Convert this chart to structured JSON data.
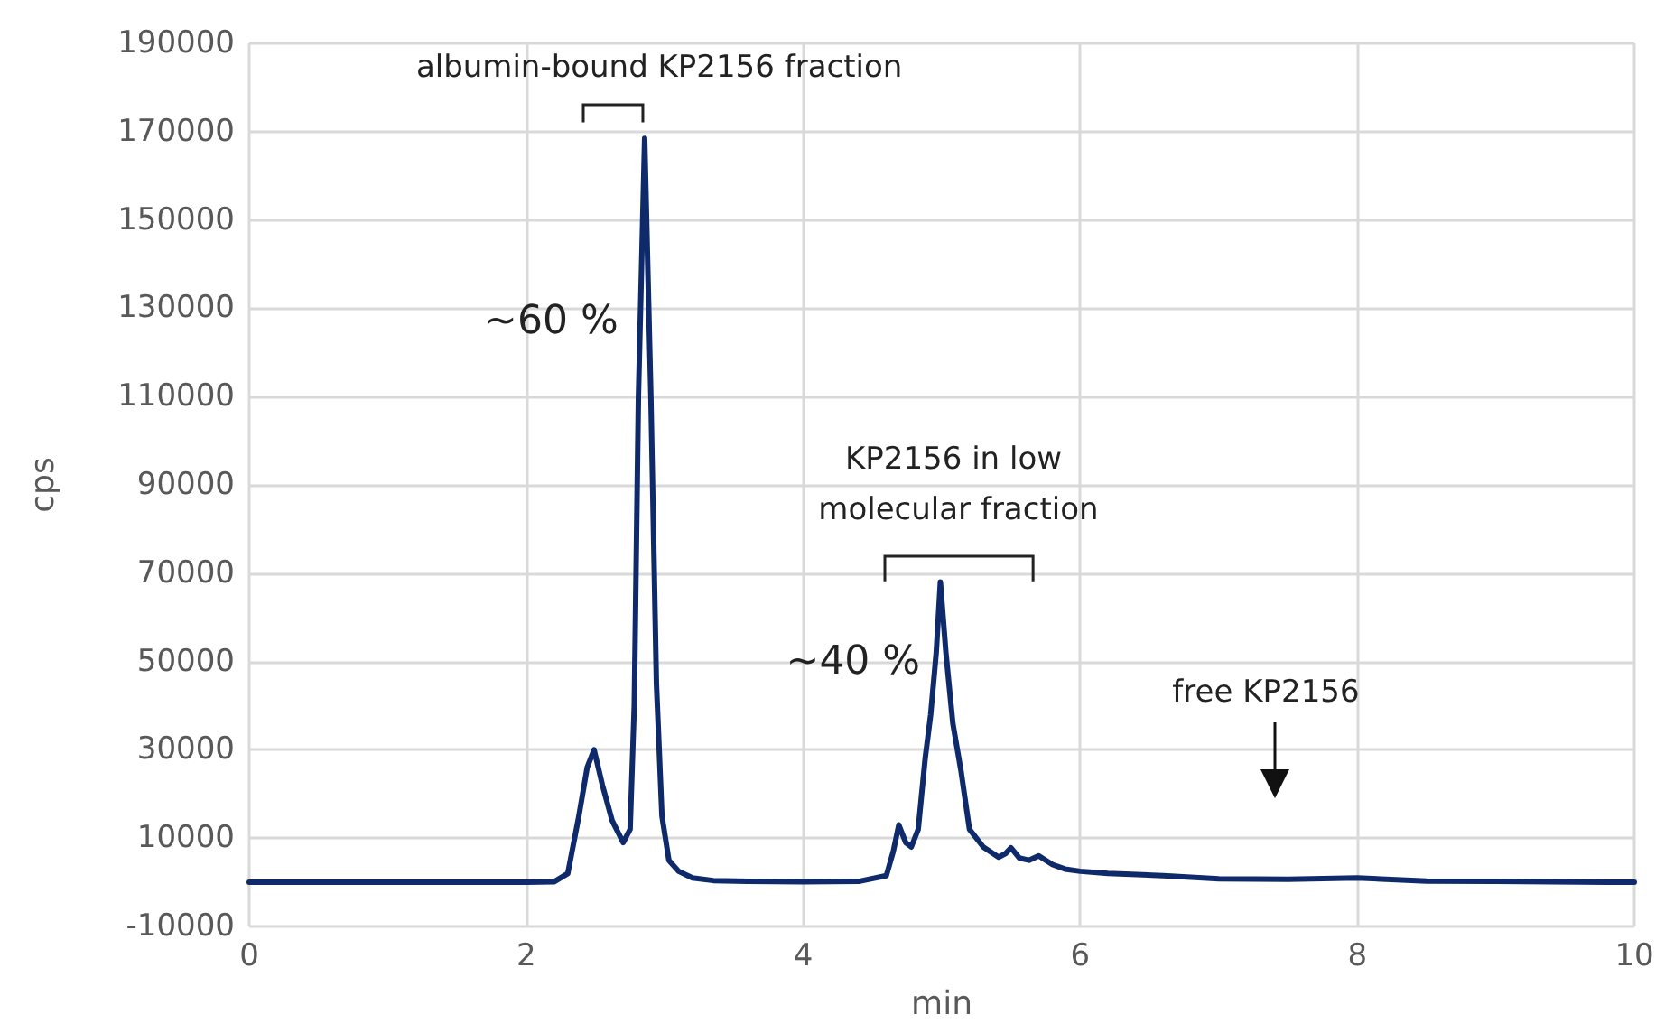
{
  "chart_data": {
    "type": "line",
    "xlabel": "min",
    "ylabel": "cps",
    "xlim": [
      0,
      10
    ],
    "xticks": [
      0,
      2,
      4,
      6,
      8,
      10
    ],
    "ylim": [
      -10000,
      190000
    ],
    "yticks": [
      -10000,
      10000,
      30000,
      50000,
      70000,
      90000,
      110000,
      130000,
      150000,
      170000,
      190000
    ],
    "grid": true,
    "marker": "none",
    "line_style": "solid",
    "series": [
      {
        "color": "#0e2a6b",
        "x": [
          0,
          1,
          2,
          2.2,
          2.3,
          2.38,
          2.44,
          2.49,
          2.55,
          2.62,
          2.7,
          2.75,
          2.78,
          2.81,
          2.855,
          2.9,
          2.94,
          2.98,
          3.03,
          3.1,
          3.2,
          3.35,
          3.6,
          4,
          4.4,
          4.6,
          4.65,
          4.69,
          4.74,
          4.78,
          4.83,
          4.88,
          4.92,
          4.96,
          4.99,
          5.03,
          5.08,
          5.14,
          5.2,
          5.3,
          5.41,
          5.46,
          5.5,
          5.56,
          5.63,
          5.7,
          5.8,
          5.89,
          6,
          6.2,
          6.6,
          7,
          7.5,
          8,
          8.5,
          9,
          10
        ],
        "values": [
          0,
          0,
          0,
          100,
          2000,
          15000,
          26000,
          30000,
          22000,
          14000,
          9000,
          12000,
          40000,
          110000,
          168500,
          110000,
          45000,
          15000,
          5000,
          2500,
          1000,
          400,
          200,
          100,
          200,
          1500,
          7000,
          13000,
          9000,
          8000,
          12000,
          28000,
          38000,
          52000,
          68000,
          52000,
          36000,
          25000,
          12000,
          8000,
          5700,
          6500,
          7800,
          5500,
          5000,
          6000,
          4000,
          3000,
          2500,
          2000,
          1500,
          800,
          700,
          1000,
          300,
          200,
          0
        ]
      }
    ],
    "annotations": [
      "albumin-bound KP2156 fraction",
      "~60 %",
      "KP2156 in low molecular fraction",
      "~40 %",
      "free KP2156"
    ]
  }
}
